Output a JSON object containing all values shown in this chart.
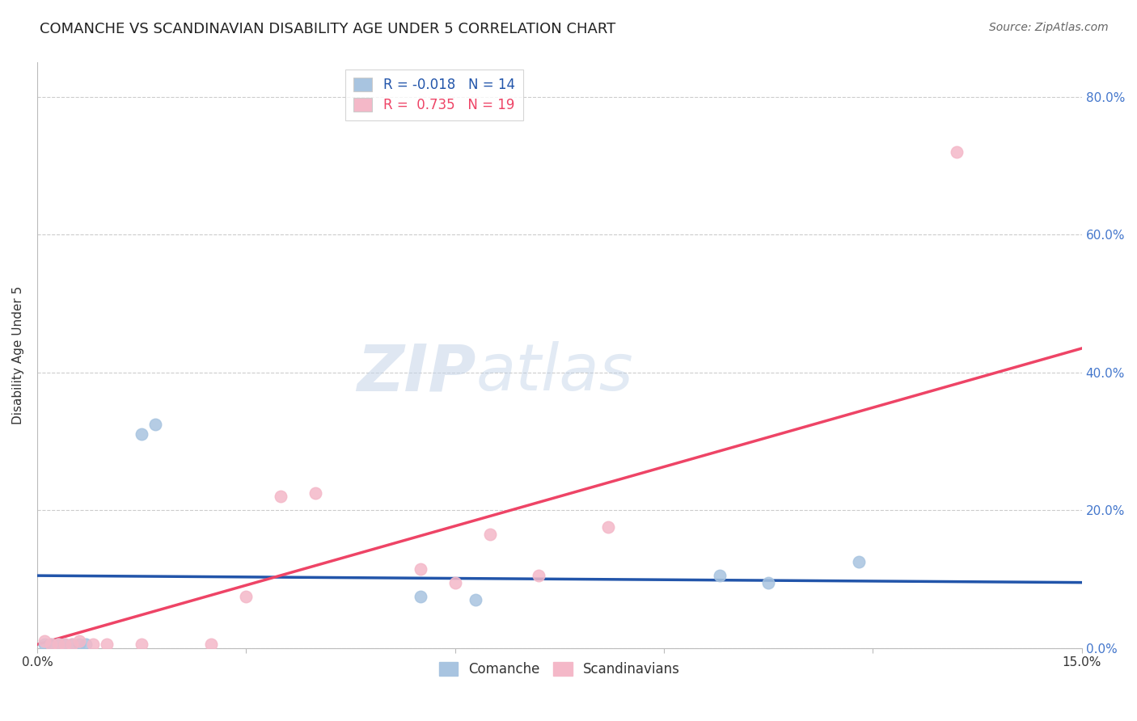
{
  "title": "COMANCHE VS SCANDINAVIAN DISABILITY AGE UNDER 5 CORRELATION CHART",
  "source": "Source: ZipAtlas.com",
  "ylabel_label": "Disability Age Under 5",
  "xlim": [
    0.0,
    0.15
  ],
  "ylim": [
    0.0,
    0.85
  ],
  "xtick_positions": [
    0.0,
    0.03,
    0.06,
    0.09,
    0.12,
    0.15
  ],
  "xtick_labels": [
    "0.0%",
    "",
    "",
    "",
    "",
    "15.0%"
  ],
  "ytick_values": [
    0.0,
    0.2,
    0.4,
    0.6,
    0.8
  ],
  "ytick_labels": [
    "0.0%",
    "20.0%",
    "40.0%",
    "60.0%",
    "80.0%"
  ],
  "grid_color": "#cccccc",
  "background_color": "#ffffff",
  "comanche_color": "#a8c4e0",
  "scandinavian_color": "#f4b8c8",
  "comanche_line_color": "#2255aa",
  "scandinavian_line_color": "#ee4466",
  "comanche_R": -0.018,
  "comanche_N": 14,
  "scandinavian_R": 0.735,
  "scandinavian_N": 19,
  "comanche_x": [
    0.001,
    0.002,
    0.003,
    0.004,
    0.005,
    0.006,
    0.007,
    0.015,
    0.017,
    0.055,
    0.063,
    0.098,
    0.105,
    0.118
  ],
  "comanche_y": [
    0.005,
    0.005,
    0.005,
    0.005,
    0.005,
    0.005,
    0.005,
    0.31,
    0.325,
    0.075,
    0.07,
    0.105,
    0.095,
    0.125
  ],
  "scandinavian_x": [
    0.001,
    0.002,
    0.003,
    0.004,
    0.005,
    0.006,
    0.008,
    0.01,
    0.015,
    0.025,
    0.03,
    0.035,
    0.04,
    0.055,
    0.06,
    0.065,
    0.072,
    0.082,
    0.132
  ],
  "scandinavian_y": [
    0.01,
    0.005,
    0.005,
    0.005,
    0.005,
    0.01,
    0.005,
    0.005,
    0.005,
    0.005,
    0.075,
    0.22,
    0.225,
    0.115,
    0.095,
    0.165,
    0.105,
    0.175,
    0.72
  ],
  "comanche_line_x": [
    0.0,
    0.15
  ],
  "comanche_line_y": [
    0.105,
    0.095
  ],
  "scandinavian_line_x": [
    0.0,
    0.15
  ],
  "scandinavian_line_y": [
    0.005,
    0.435
  ],
  "watermark_text": "ZIPatlas",
  "marker_size": 110,
  "title_fontsize": 13,
  "source_fontsize": 10,
  "axis_label_fontsize": 11,
  "tick_fontsize": 11
}
